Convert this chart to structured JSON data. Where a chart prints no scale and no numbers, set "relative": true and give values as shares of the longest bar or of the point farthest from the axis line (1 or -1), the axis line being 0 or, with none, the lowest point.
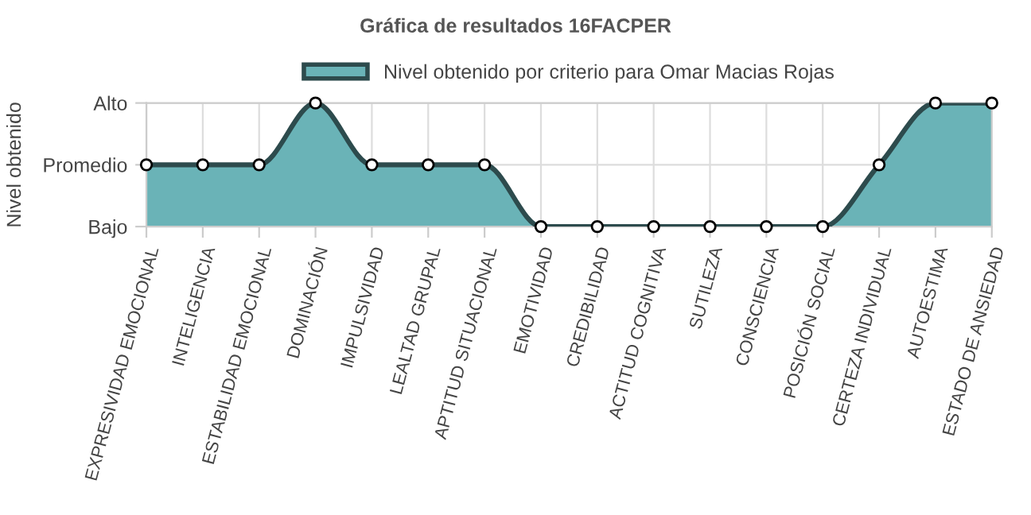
{
  "chart_data": {
    "type": "area",
    "title": "Gráfica de resultados 16FACPER",
    "ylabel": "Nivel obtenido",
    "categories": [
      "EXPRESIVIDAD EMOCIONAL",
      "INTELIGENCIA",
      "ESTABILIDAD EMOCIONAL",
      "DOMINACIÓN",
      "IMPULSIVIDAD",
      "LEALTAD GRUPAL",
      "APTITUD SITUACIONAL",
      "EMOTIVIDAD",
      "CREDIBILIDAD",
      "ACTITUD COGNITIVA",
      "SUTILEZA",
      "CONSCIENCIA",
      "POSICIÓN SOCIAL",
      "CERTEZA INDIVIDUAL",
      "AUTOESTIMA",
      "ESTADO DE ANSIEDAD"
    ],
    "series": [
      {
        "name": "Nivel obtenido por criterio para Omar Macias Rojas",
        "color": "#6ab3b7",
        "values": [
          0.5,
          0.5,
          0.5,
          1,
          0.5,
          0.5,
          0.5,
          0,
          0,
          0,
          0,
          0,
          0,
          0.5,
          1,
          1
        ]
      }
    ],
    "relative": true,
    "y_categories": [
      "Alto",
      "Promedio",
      "Bajo"
    ],
    "grid": true,
    "legend": "top",
    "marker": "circle"
  }
}
